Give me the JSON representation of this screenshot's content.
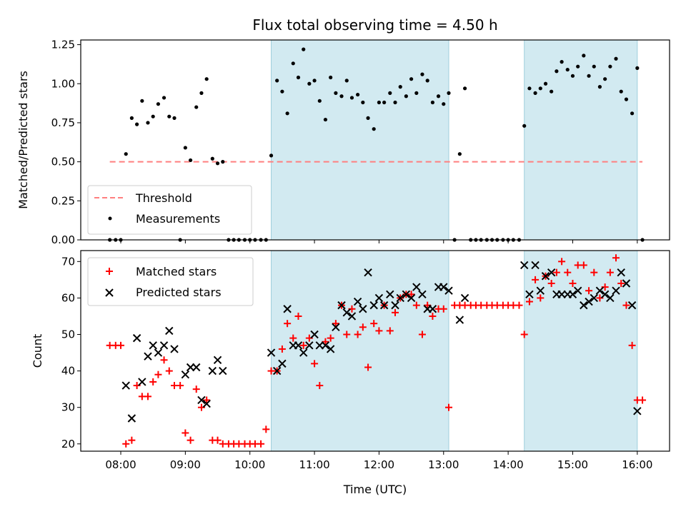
{
  "chart_data": [
    {
      "type": "scatter",
      "title": "Flux total observing time = 4.50 h",
      "xlabel": "",
      "ylabel": "Matched/Predicted stars",
      "x_unit": "hours (UTC)",
      "xlim": [
        7.38,
        16.5
      ],
      "ylim": [
        0,
        1.28
      ],
      "yticks": [
        "0.00",
        "0.25",
        "0.50",
        "0.75",
        "1.00",
        "1.25"
      ],
      "yticks_values": [
        0,
        0.25,
        0.5,
        0.75,
        1.0,
        1.25
      ],
      "shaded_intervals": [
        [
          10.33,
          13.08
        ],
        [
          14.25,
          16.0
        ]
      ],
      "shade_color": "#add8e6",
      "threshold": {
        "name": "Threshold",
        "value": 0.5,
        "x_range": [
          7.83,
          16.08
        ],
        "color": "#ff7f7f",
        "style": "dashed"
      },
      "legend": {
        "placement": "lower-left",
        "entries": [
          "Threshold",
          "Measurements"
        ]
      },
      "series": [
        {
          "name": "Measurements",
          "color": "#000000",
          "x": [
            7.83,
            7.92,
            8.0,
            8.08,
            8.17,
            8.25,
            8.33,
            8.42,
            8.5,
            8.58,
            8.67,
            8.75,
            8.83,
            8.92,
            9.0,
            9.08,
            9.17,
            9.25,
            9.33,
            9.42,
            9.5,
            9.58,
            9.67,
            9.75,
            9.83,
            9.92,
            10.0,
            10.08,
            10.17,
            10.25,
            10.33,
            10.42,
            10.5,
            10.58,
            10.67,
            10.75,
            10.83,
            10.92,
            11.0,
            11.08,
            11.17,
            11.25,
            11.33,
            11.42,
            11.5,
            11.58,
            11.67,
            11.75,
            11.83,
            11.92,
            12.0,
            12.08,
            12.17,
            12.25,
            12.33,
            12.42,
            12.5,
            12.58,
            12.67,
            12.75,
            12.83,
            12.92,
            13.0,
            13.08,
            13.17,
            13.25,
            13.33,
            13.42,
            13.5,
            13.58,
            13.67,
            13.75,
            13.83,
            13.92,
            14.0,
            14.08,
            14.17,
            14.25,
            14.33,
            14.42,
            14.5,
            14.58,
            14.67,
            14.75,
            14.83,
            14.92,
            15.0,
            15.08,
            15.17,
            15.25,
            15.33,
            15.42,
            15.5,
            15.58,
            15.67,
            15.75,
            15.83,
            15.92,
            16.0,
            16.08
          ],
          "y": [
            0,
            0,
            0,
            0.55,
            0.78,
            0.74,
            0.89,
            0.75,
            0.79,
            0.87,
            0.91,
            0.79,
            0.78,
            0,
            0.59,
            0.51,
            0.85,
            0.94,
            1.03,
            0.52,
            0.49,
            0.5,
            0,
            0,
            0,
            0,
            0,
            0,
            0,
            0,
            0.54,
            1.02,
            0.95,
            0.81,
            1.13,
            1.04,
            1.22,
            1.0,
            1.02,
            0.89,
            0.77,
            1.04,
            0.94,
            0.92,
            1.02,
            0.91,
            0.93,
            0.88,
            0.78,
            0.71,
            0.88,
            0.88,
            0.94,
            0.88,
            0.98,
            0.92,
            1.03,
            0.94,
            1.06,
            1.02,
            0.88,
            0.92,
            0.87,
            0.94,
            0,
            0.55,
            0.97,
            0,
            0,
            0,
            0,
            0,
            0,
            0,
            0,
            0,
            0,
            0.73,
            0.97,
            0.94,
            0.97,
            1.0,
            0.95,
            1.08,
            1.14,
            1.09,
            1.05,
            1.11,
            1.18,
            1.05,
            1.11,
            0.98,
            1.03,
            1.11,
            1.16,
            0.95,
            0.9,
            0.81,
            1.1,
            0
          ]
        }
      ]
    },
    {
      "type": "scatter",
      "title": "",
      "xlabel": "Time (UTC)",
      "ylabel": "Count",
      "x_unit": "hours (UTC)",
      "xlim": [
        7.38,
        16.5
      ],
      "ylim": [
        18,
        73
      ],
      "xticks": [
        "08:00",
        "09:00",
        "10:00",
        "11:00",
        "12:00",
        "13:00",
        "14:00",
        "15:00",
        "16:00"
      ],
      "xticks_values": [
        8,
        9,
        10,
        11,
        12,
        13,
        14,
        15,
        16
      ],
      "yticks": [
        "20",
        "30",
        "40",
        "50",
        "60",
        "70"
      ],
      "yticks_values": [
        20,
        30,
        40,
        50,
        60,
        70
      ],
      "shaded_intervals": [
        [
          10.33,
          13.08
        ],
        [
          14.25,
          16.0
        ]
      ],
      "shade_color": "#add8e6",
      "legend": {
        "placement": "top-left",
        "entries": [
          "Matched stars",
          "Predicted stars"
        ]
      },
      "series": [
        {
          "name": "Matched stars",
          "marker": "plus",
          "color": "#ff0000",
          "x": [
            7.83,
            7.92,
            8.0,
            8.08,
            8.17,
            8.25,
            8.33,
            8.42,
            8.5,
            8.58,
            8.67,
            8.75,
            8.83,
            8.92,
            9.0,
            9.08,
            9.17,
            9.25,
            9.33,
            9.42,
            9.5,
            9.58,
            9.67,
            9.75,
            9.83,
            9.92,
            10.0,
            10.08,
            10.17,
            10.25,
            10.33,
            10.42,
            10.5,
            10.58,
            10.67,
            10.75,
            10.83,
            10.92,
            11.0,
            11.08,
            11.17,
            11.25,
            11.33,
            11.42,
            11.5,
            11.58,
            11.67,
            11.75,
            11.83,
            11.92,
            12.0,
            12.08,
            12.17,
            12.25,
            12.33,
            12.42,
            12.5,
            12.58,
            12.67,
            12.75,
            12.83,
            12.92,
            13.0,
            13.08,
            13.17,
            13.25,
            13.33,
            13.42,
            13.5,
            13.58,
            13.67,
            13.75,
            13.83,
            13.92,
            14.0,
            14.08,
            14.17,
            14.25,
            14.33,
            14.42,
            14.5,
            14.58,
            14.67,
            14.75,
            14.83,
            14.92,
            15.0,
            15.08,
            15.17,
            15.25,
            15.33,
            15.42,
            15.5,
            15.58,
            15.67,
            15.75,
            15.83,
            15.92,
            16.0,
            16.08
          ],
          "y": [
            47,
            47,
            47,
            20,
            21,
            36,
            33,
            33,
            37,
            39,
            43,
            40,
            36,
            36,
            23,
            21,
            35,
            30,
            32,
            21,
            21,
            20,
            20,
            20,
            20,
            20,
            20,
            20,
            20,
            24,
            40,
            40,
            46,
            53,
            49,
            55,
            47,
            49,
            42,
            36,
            48,
            49,
            53,
            58,
            50,
            57,
            50,
            52,
            41,
            53,
            51,
            58,
            51,
            56,
            60,
            61,
            61,
            58,
            50,
            58,
            55,
            57,
            57,
            30,
            58,
            58,
            58,
            58,
            58,
            58,
            58,
            58,
            58,
            58,
            58,
            58,
            58,
            50,
            59,
            65,
            60,
            66,
            64,
            67,
            70,
            67,
            64,
            69,
            69,
            62,
            67,
            60,
            63,
            67,
            71,
            64,
            58,
            47,
            32,
            32
          ]
        },
        {
          "name": "Predicted stars",
          "marker": "x",
          "color": "#000000",
          "x": [
            8.08,
            8.17,
            8.25,
            8.33,
            8.42,
            8.5,
            8.58,
            8.67,
            8.75,
            8.83,
            9.0,
            9.08,
            9.17,
            9.25,
            9.33,
            9.42,
            9.5,
            9.58,
            10.33,
            10.42,
            10.5,
            10.58,
            10.67,
            10.75,
            10.83,
            10.92,
            11.0,
            11.08,
            11.17,
            11.25,
            11.33,
            11.42,
            11.5,
            11.58,
            11.67,
            11.75,
            11.83,
            11.92,
            12.0,
            12.08,
            12.17,
            12.25,
            12.33,
            12.42,
            12.5,
            12.58,
            12.67,
            12.75,
            12.83,
            12.92,
            13.0,
            13.08,
            13.25,
            13.33,
            14.25,
            14.33,
            14.42,
            14.5,
            14.58,
            14.67,
            14.75,
            14.83,
            14.92,
            15.0,
            15.08,
            15.17,
            15.25,
            15.33,
            15.42,
            15.5,
            15.58,
            15.67,
            15.75,
            15.83,
            15.92,
            16.0
          ],
          "y": [
            36,
            27,
            49,
            37,
            44,
            47,
            45,
            47,
            51,
            46,
            39,
            41,
            41,
            32,
            31,
            40,
            43,
            40,
            45,
            40,
            42,
            57,
            47,
            47,
            45,
            47,
            50,
            47,
            47,
            46,
            52,
            58,
            56,
            55,
            59,
            57,
            67,
            58,
            60,
            58,
            61,
            58,
            60,
            61,
            60,
            63,
            61,
            57,
            57,
            63,
            63,
            62,
            54,
            60,
            69,
            61,
            69,
            62,
            66,
            67,
            61,
            61,
            61,
            61,
            62,
            58,
            59,
            60,
            62,
            61,
            60,
            62,
            67,
            64,
            58,
            29
          ]
        }
      ]
    }
  ]
}
